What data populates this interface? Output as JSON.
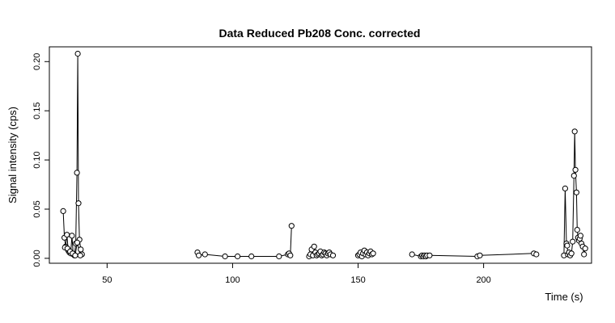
{
  "chart_data": {
    "type": "scatter",
    "title": "Data Reduced Pb208 Conc. corrected",
    "xlabel": "Time (s)",
    "ylabel": "Signal intensity (cps)",
    "xlim": [
      27,
      243
    ],
    "ylim": [
      -0.005,
      0.215
    ],
    "xticks": [
      50,
      100,
      150,
      200
    ],
    "yticks": [
      0.0,
      0.05,
      0.1,
      0.15,
      0.2
    ],
    "ytick_labels": [
      "0.00",
      "0.05",
      "0.10",
      "0.15",
      "0.20"
    ],
    "grid": false,
    "colors": {
      "points": "#000000",
      "line": "#000000",
      "frame": "#000000"
    },
    "segments": [
      {
        "x": [
          32.5,
          33.0,
          33.5,
          34.0,
          34.5,
          35.0,
          35.5,
          36.0,
          36.5,
          37.0,
          37.5,
          38.0,
          38.3,
          38.6,
          39.0,
          39.5,
          40.0
        ],
        "y": [
          0.048,
          0.021,
          0.012,
          0.024,
          0.008,
          0.006,
          0.005,
          0.023,
          0.004,
          0.003,
          0.015,
          0.087,
          0.208,
          0.056,
          0.019,
          0.009,
          0.004
        ]
      },
      {
        "x": [
          33.2,
          34.2,
          35.3,
          36.3,
          37.3,
          38.1,
          39.3
        ],
        "y": [
          0.011,
          0.01,
          0.007,
          0.005,
          0.003,
          0.016,
          0.003
        ]
      },
      {
        "x": [
          86.0,
          86.5,
          89.0,
          97.0,
          102.0,
          107.5,
          118.5,
          122.0,
          122.5,
          123.0,
          123.5
        ],
        "y": [
          0.006,
          0.003,
          0.004,
          0.002,
          0.002,
          0.002,
          0.002,
          0.004,
          0.005,
          0.003,
          0.033
        ]
      },
      {
        "x": [
          130.5,
          131.0,
          131.5,
          132.0,
          132.5,
          133.0,
          133.5,
          134.0,
          134.5,
          135.0,
          135.5,
          136.0,
          136.5,
          137.0,
          137.5,
          138.0,
          138.5,
          139.0,
          140.0
        ],
        "y": [
          0.002,
          0.004,
          0.009,
          0.003,
          0.012,
          0.006,
          0.003,
          0.004,
          0.005,
          0.007,
          0.003,
          0.004,
          0.006,
          0.005,
          0.003,
          0.005,
          0.006,
          0.004,
          0.003
        ]
      },
      {
        "x": [
          150.0,
          150.5,
          151.0,
          151.5,
          152.0,
          152.5,
          153.0,
          153.5,
          154.0,
          154.5,
          155.0,
          155.5,
          156.0
        ],
        "y": [
          0.003,
          0.004,
          0.006,
          0.002,
          0.005,
          0.008,
          0.004,
          0.006,
          0.003,
          0.005,
          0.007,
          0.004,
          0.005
        ]
      },
      {
        "x": [
          171.5,
          175.0,
          175.5,
          176.0,
          176.5,
          177.0,
          177.5,
          178.5,
          197.5,
          198.5,
          220.0,
          221.0
        ],
        "y": [
          0.004,
          0.002,
          0.003,
          0.002,
          0.003,
          0.002,
          0.003,
          0.003,
          0.002,
          0.003,
          0.005,
          0.004
        ]
      },
      {
        "x": [
          232.0,
          232.5,
          233.0,
          233.3,
          233.6,
          234.0,
          234.5,
          235.0,
          235.5,
          236.0,
          236.3,
          236.6,
          237.0,
          237.3,
          237.6,
          238.0,
          238.3,
          238.6,
          239.0,
          239.5,
          240.0,
          240.5
        ],
        "y": [
          0.003,
          0.071,
          0.015,
          0.013,
          0.004,
          0.006,
          0.003,
          0.005,
          0.017,
          0.084,
          0.129,
          0.09,
          0.067,
          0.029,
          0.021,
          0.018,
          0.02,
          0.023,
          0.015,
          0.012,
          0.004,
          0.01
        ]
      }
    ]
  }
}
